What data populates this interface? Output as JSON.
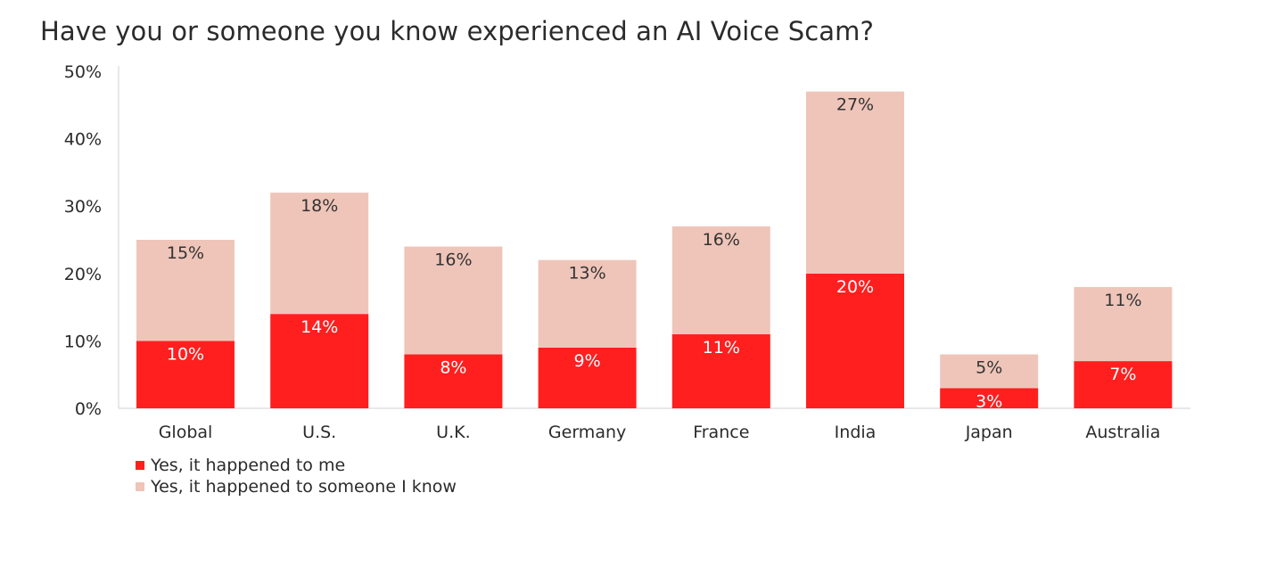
{
  "chart_data": {
    "type": "bar",
    "stacked": true,
    "title": "Have you or someone you know experienced an AI Voice Scam?",
    "categories": [
      "Global",
      "U.S.",
      "U.K.",
      "Germany",
      "France",
      "India",
      "Japan",
      "Australia"
    ],
    "series": [
      {
        "name": "Yes, it happened to me",
        "color": "#ff1f1f",
        "label_color": "#ffffff",
        "values": [
          10,
          14,
          8,
          9,
          11,
          20,
          3,
          7
        ],
        "labels": [
          "10%",
          "14%",
          "8%",
          "9%",
          "11%",
          "20%",
          "3%",
          "7%"
        ]
      },
      {
        "name": "Yes, it happened to someone I know",
        "color": "#efc5b9",
        "label_color": "#333333",
        "values": [
          15,
          18,
          16,
          13,
          16,
          27,
          5,
          11
        ],
        "labels": [
          "15%",
          "18%",
          "16%",
          "13%",
          "16%",
          "27%",
          "5%",
          "11%"
        ]
      }
    ],
    "ylim": [
      0,
      50
    ],
    "yticks": [
      0,
      10,
      20,
      30,
      40,
      50
    ],
    "ytick_labels": [
      "0%",
      "10%",
      "20%",
      "30%",
      "40%",
      "50%"
    ],
    "grid": false,
    "legend_position": "bottom-left"
  }
}
